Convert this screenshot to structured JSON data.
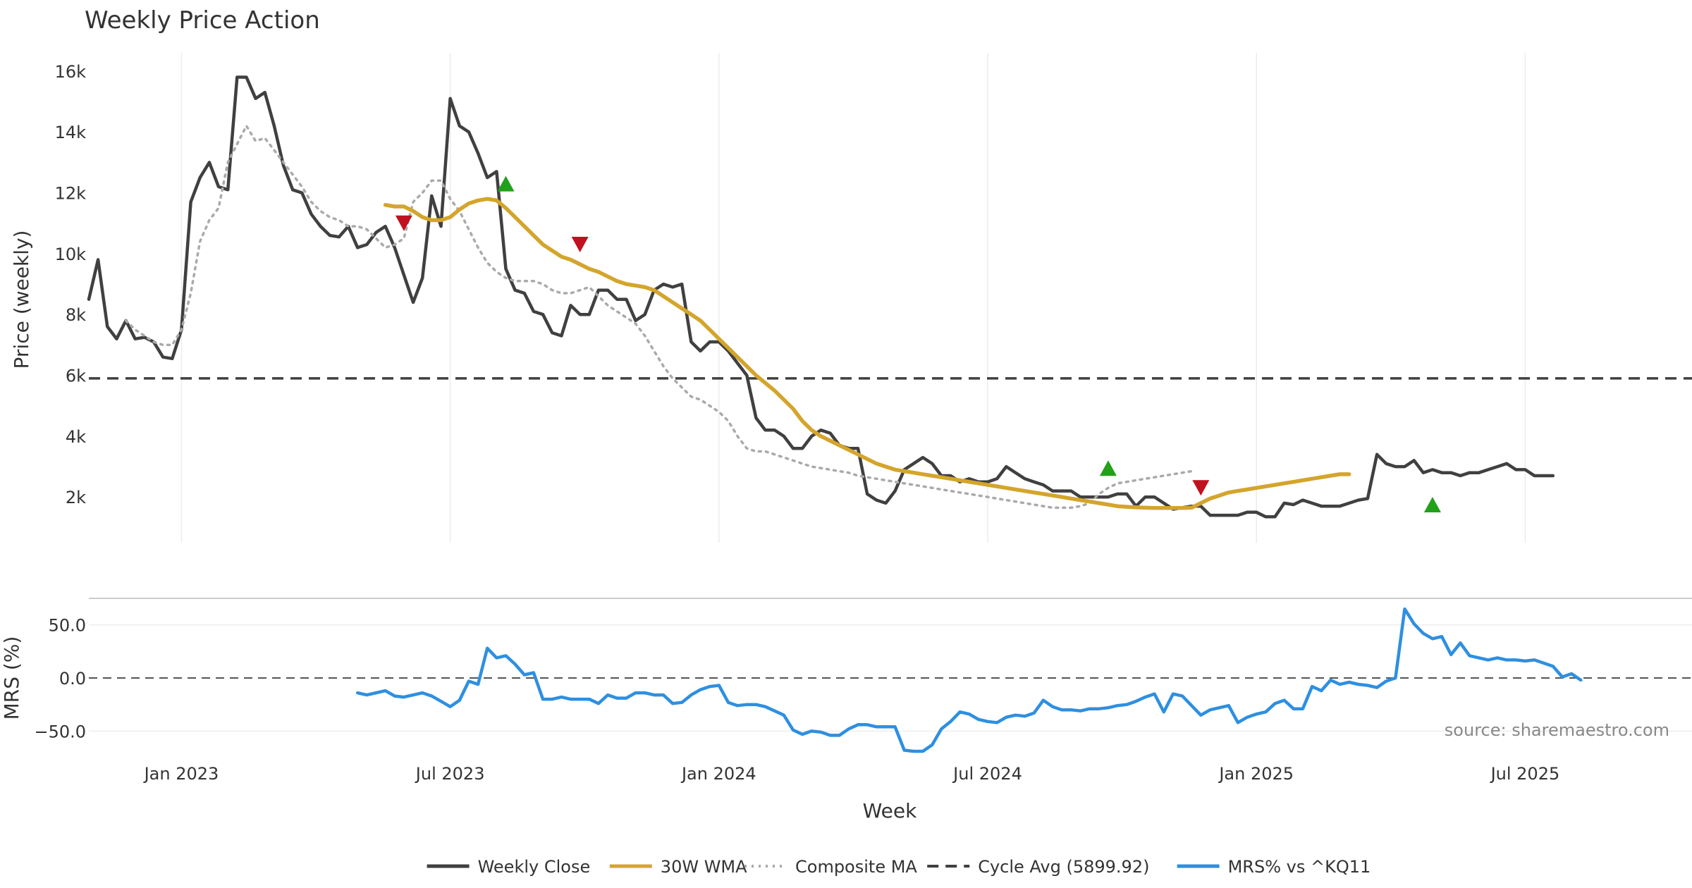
{
  "chart_data": {
    "type": "line",
    "title": "Weekly Price Action",
    "xlabel": "Week",
    "x_ticks": [
      "Jan 2023",
      "Jul 2023",
      "Jan 2024",
      "Jul 2024",
      "Jan 2025",
      "Jul 2025"
    ],
    "x_tick_weeks": [
      10,
      39,
      68,
      97,
      126,
      155
    ],
    "x_range": [
      0,
      173
    ],
    "price_panel": {
      "ylabel": "Price (weekly)",
      "y_ticks": [
        2000,
        4000,
        6000,
        8000,
        10000,
        12000,
        14000,
        16000
      ],
      "y_tick_labels": [
        "2k",
        "4k",
        "6k",
        "8k",
        "10k",
        "12k",
        "14k",
        "16k"
      ],
      "ylim": [
        500,
        16600
      ],
      "series": [
        {
          "name": "Weekly Close",
          "color": "#404040",
          "style": "solid",
          "start_week": 0,
          "values": [
            8500,
            9800,
            7600,
            7200,
            7800,
            7200,
            7250,
            7100,
            6600,
            6550,
            7500,
            11700,
            12500,
            13000,
            12200,
            12100,
            15800,
            15800,
            15100,
            15300,
            14200,
            12900,
            12100,
            12000,
            11300,
            10900,
            10600,
            10550,
            10900,
            10200,
            10300,
            10700,
            10900,
            10200,
            9300,
            8400,
            9200,
            11900,
            10900,
            15100,
            14200,
            14000,
            13300,
            12500,
            12700,
            9500,
            8800,
            8700,
            8100,
            8000,
            7400,
            7300,
            8300,
            8000,
            8000,
            8800,
            8800,
            8500,
            8500,
            7800,
            8000,
            8800,
            9000,
            8900,
            9000,
            7100,
            6800,
            7100,
            7100,
            6800,
            6400,
            6000,
            4600,
            4200,
            4200,
            4000,
            3600,
            3600,
            4000,
            4200,
            4100,
            3700,
            3600,
            3600,
            2100,
            1900,
            1800,
            2200,
            2900,
            3100,
            3300,
            3100,
            2700,
            2700,
            2500,
            2600,
            2500,
            2500,
            2600,
            3000,
            2800,
            2600,
            2500,
            2400,
            2200,
            2200,
            2200,
            2000,
            2000,
            2000,
            2000,
            2100,
            2100,
            1700,
            2000,
            2000,
            1800,
            1600,
            1650,
            1700,
            1700,
            1400,
            1400,
            1400,
            1400,
            1500,
            1500,
            1350,
            1350,
            1800,
            1750,
            1900,
            1800,
            1700,
            1700,
            1700,
            1800,
            1900,
            1950,
            3400,
            3100,
            3000,
            3000,
            3200,
            2800,
            2900,
            2800,
            2800,
            2700,
            2800,
            2800,
            2900,
            3000,
            3100,
            2900,
            2900,
            2700,
            2700,
            2700
          ]
        },
        {
          "name": "30W WMA",
          "color": "#d4a52c",
          "style": "solid",
          "start_week": 32,
          "values": [
            11600,
            11550,
            11550,
            11400,
            11200,
            11100,
            11100,
            11200,
            11450,
            11650,
            11750,
            11800,
            11750,
            11500,
            11200,
            10900,
            10600,
            10300,
            10100,
            9900,
            9800,
            9650,
            9500,
            9400,
            9250,
            9100,
            9000,
            8950,
            8900,
            8800,
            8600,
            8400,
            8200,
            8000,
            7800,
            7500,
            7200,
            6900,
            6600,
            6300,
            6000,
            5750,
            5500,
            5200,
            4900,
            4500,
            4200,
            4000,
            3850,
            3700,
            3550,
            3400,
            3250,
            3100,
            3000,
            2900,
            2850,
            2800,
            2750,
            2700,
            2650,
            2600,
            2550,
            2500,
            2450,
            2400,
            2350,
            2300,
            2250,
            2200,
            2150,
            2100,
            2050,
            2000,
            1950,
            1900,
            1850,
            1800,
            1750,
            1700,
            1680,
            1660,
            1650,
            1640,
            1640,
            1640,
            1640,
            1650,
            1800,
            1950,
            2050,
            2150,
            2200,
            2250,
            2300,
            2350,
            2400,
            2450,
            2500,
            2550,
            2600,
            2650,
            2700,
            2750,
            2750
          ]
        },
        {
          "name": "Composite MA",
          "color": "#aaaaaa",
          "style": "dotted",
          "start_week": 4,
          "values": [
            7800,
            7500,
            7300,
            7100,
            7000,
            7000,
            7500,
            8700,
            10400,
            11100,
            11500,
            13000,
            13600,
            14200,
            13700,
            13800,
            13400,
            13000,
            12600,
            12200,
            11700,
            11400,
            11200,
            11100,
            10900,
            10900,
            10800,
            10500,
            10200,
            10300,
            10500,
            11700,
            12000,
            12400,
            12400,
            11800,
            11400,
            10800,
            10200,
            9700,
            9400,
            9200,
            9100,
            9100,
            9100,
            9000,
            8800,
            8700,
            8700,
            8800,
            8900,
            8600,
            8300,
            8100,
            7900,
            7700,
            7300,
            6800,
            6300,
            5900,
            5600,
            5300,
            5200,
            5000,
            4800,
            4500,
            4000,
            3600,
            3500,
            3500,
            3400,
            3300,
            3200,
            3100,
            3000,
            2950,
            2900,
            2850,
            2800,
            2700,
            2650,
            2600,
            2550,
            2500,
            2450,
            2400,
            2350,
            2300,
            2250,
            2200,
            2150,
            2100,
            2050,
            2000,
            1950,
            1900,
            1850,
            1800,
            1750,
            1700,
            1650,
            1650,
            1650,
            1700,
            1800,
            2100,
            2300,
            2450,
            2500,
            2550,
            2600,
            2650,
            2700,
            2750,
            2800,
            2850
          ]
        },
        {
          "name": "Cycle Avg (5899.92)",
          "color": "#404040",
          "style": "dashed",
          "value": 5899.92
        }
      ],
      "markers": [
        {
          "type": "sell",
          "shape": "down-triangle",
          "color": "#c0111f",
          "week": 34,
          "value": 11000
        },
        {
          "type": "buy",
          "shape": "up-triangle",
          "color": "#22a01a",
          "week": 45,
          "value": 12300
        },
        {
          "type": "sell",
          "shape": "down-triangle",
          "color": "#c0111f",
          "week": 53,
          "value": 10300
        },
        {
          "type": "buy",
          "shape": "up-triangle",
          "color": "#22a01a",
          "week": 110,
          "value": 2950
        },
        {
          "type": "sell",
          "shape": "down-triangle",
          "color": "#c0111f",
          "week": 120,
          "value": 2300
        },
        {
          "type": "buy",
          "shape": "up-triangle",
          "color": "#22a01a",
          "week": 145,
          "value": 1750
        }
      ]
    },
    "mrs_panel": {
      "ylabel": "MRS (%)",
      "y_ticks": [
        -50,
        0,
        50
      ],
      "y_tick_labels": [
        "−50.0",
        "0.0",
        "50.0"
      ],
      "ylim": [
        -75,
        75
      ],
      "zero_line": 0,
      "series": [
        {
          "name": "MRS% vs ^KQ11",
          "color": "#2e8fe0",
          "style": "solid",
          "start_week": 29,
          "values": [
            -14,
            -16,
            -14,
            -12,
            -17,
            -18,
            -16,
            -14,
            -17,
            -22,
            -27,
            -21,
            -3,
            -6,
            28,
            19,
            21,
            13,
            3,
            5,
            -20,
            -20,
            -18,
            -20,
            -20,
            -20,
            -24,
            -16,
            -19,
            -19,
            -14,
            -14,
            -16,
            -16,
            -24,
            -23,
            -16,
            -11,
            -8,
            -7,
            -23,
            -26,
            -25,
            -25,
            -27,
            -31,
            -35,
            -49,
            -53,
            -50,
            -51,
            -54,
            -54,
            -48,
            -44,
            -44,
            -46,
            -46,
            -46,
            -68,
            -69,
            -69,
            -63,
            -48,
            -41,
            -32,
            -34,
            -39,
            -41,
            -42,
            -37,
            -35,
            -36,
            -33,
            -21,
            -27,
            -30,
            -30,
            -31,
            -29,
            -29,
            -28,
            -26,
            -25,
            -22,
            -18,
            -15,
            -32,
            -15,
            -17,
            -26,
            -35,
            -30,
            -28,
            -26,
            -42,
            -37,
            -34,
            -32,
            -24,
            -21,
            -29,
            -29,
            -8,
            -12,
            -2,
            -6,
            -4,
            -6,
            -7,
            -9,
            -3,
            0,
            65,
            51,
            42,
            37,
            39,
            22,
            33,
            21,
            19,
            17,
            19,
            17,
            17,
            16,
            17,
            14,
            11,
            1,
            4,
            -2
          ]
        }
      ]
    },
    "source_note": "source: sharemaestro.com",
    "legend": {
      "position": "bottom-center",
      "items": [
        {
          "label": "Weekly Close",
          "color": "#404040",
          "style": "solid"
        },
        {
          "label": "30W WMA",
          "color": "#d4a52c",
          "style": "solid"
        },
        {
          "label": "Composite MA",
          "color": "#aaaaaa",
          "style": "dotted"
        },
        {
          "label": "Cycle Avg (5899.92)",
          "color": "#404040",
          "style": "dashed"
        },
        {
          "label": "MRS% vs ^KQ11",
          "color": "#2e8fe0",
          "style": "solid"
        }
      ]
    }
  }
}
